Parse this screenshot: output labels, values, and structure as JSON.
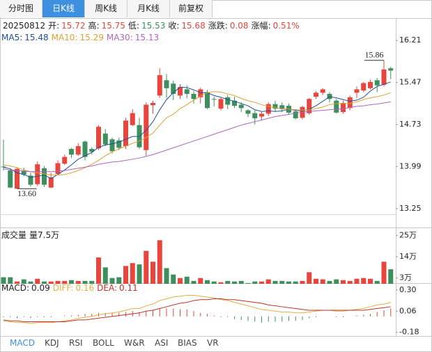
{
  "tabs": {
    "items": [
      "分时图",
      "日K线",
      "周K线",
      "月K线",
      "前复权"
    ],
    "active": 1
  },
  "info": {
    "date": "20250812",
    "fields": [
      {
        "label": "开",
        "value": "15.72",
        "color": "#e8453c"
      },
      {
        "label": "高",
        "value": "15.75",
        "color": "#e8453c"
      },
      {
        "label": "低",
        "value": "15.53",
        "color": "#3d8f5d"
      },
      {
        "label": "收",
        "value": "15.68",
        "color": "#e8453c"
      },
      {
        "label": "涨跌",
        "value": "0.08",
        "color": "#e8453c"
      },
      {
        "label": "涨幅",
        "value": "0.51%",
        "color": "#e8453c"
      }
    ]
  },
  "chart_data": [
    {
      "type": "candlestick",
      "up_color": "#e8453c",
      "down_color": "#3d8f5d",
      "open": [
        13.99,
        13.92,
        13.6,
        13.92,
        13.83,
        13.68,
        13.96,
        13.62,
        13.86,
        14.04,
        14.3,
        14.2,
        14.43,
        14.3,
        14.31,
        14.57,
        14.47,
        14.45,
        14.35,
        14.72,
        14.72,
        14.28,
        15.07,
        15.24,
        15.51,
        15.45,
        15.24,
        15.35,
        15.27,
        15.21,
        15.3,
        15.18,
        15.01,
        15.21,
        15.15,
        15.08,
        14.98,
        14.93,
        14.87,
        14.92,
        15.09,
        15.07,
        15.06,
        14.96,
        14.85,
        14.93,
        15.22,
        15.29,
        15.27,
        15.15,
        14.95,
        15.02,
        15.29,
        15.33,
        15.37,
        15.51,
        15.43,
        15.72
      ],
      "high": [
        14.46,
        13.94,
        13.98,
        13.97,
        13.88,
        14.08,
        14.0,
        13.88,
        14.1,
        14.2,
        14.32,
        14.4,
        14.45,
        14.33,
        14.72,
        14.65,
        14.5,
        14.5,
        14.85,
        15.0,
        14.85,
        15.12,
        15.15,
        15.72,
        15.62,
        15.5,
        15.44,
        15.42,
        15.32,
        15.38,
        15.34,
        15.22,
        15.2,
        15.25,
        15.22,
        15.12,
        15.0,
        14.98,
        14.95,
        15.12,
        15.15,
        15.12,
        15.1,
        15.0,
        15.06,
        15.2,
        15.32,
        15.37,
        15.3,
        15.18,
        15.15,
        15.24,
        15.4,
        15.48,
        15.52,
        15.55,
        15.86,
        15.75
      ],
      "low": [
        13.92,
        13.61,
        13.6,
        13.82,
        13.64,
        13.65,
        13.63,
        13.61,
        13.84,
        14.02,
        14.14,
        14.18,
        14.1,
        14.2,
        14.28,
        14.35,
        14.22,
        14.28,
        14.3,
        14.7,
        14.3,
        14.18,
        14.92,
        15.2,
        15.2,
        15.16,
        15.18,
        15.19,
        15.1,
        15.1,
        15.0,
        15.05,
        14.98,
        15.0,
        15.02,
        14.95,
        14.86,
        14.73,
        14.8,
        14.88,
        14.96,
        14.95,
        14.9,
        14.82,
        14.82,
        14.9,
        15.18,
        15.25,
        15.12,
        14.92,
        14.92,
        14.98,
        15.2,
        15.3,
        15.35,
        15.3,
        15.4,
        15.53
      ],
      "close": [
        13.98,
        13.62,
        13.95,
        13.85,
        13.67,
        14.03,
        13.67,
        13.8,
        14.05,
        14.16,
        14.2,
        14.35,
        14.16,
        14.25,
        14.69,
        14.38,
        14.26,
        14.32,
        14.8,
        14.93,
        14.33,
        15.08,
        15.11,
        15.6,
        15.37,
        15.27,
        15.39,
        15.27,
        15.18,
        15.35,
        15.02,
        15.17,
        15.18,
        15.08,
        15.06,
        15.02,
        14.92,
        14.84,
        14.92,
        15.09,
        15.01,
        15.0,
        14.94,
        14.84,
        15.04,
        15.18,
        15.29,
        15.35,
        15.18,
        14.94,
        15.11,
        15.21,
        15.35,
        15.46,
        15.48,
        15.42,
        15.7,
        15.68
      ],
      "series": [
        {
          "name": "MA5",
          "color": "#1f4f99",
          "current": 15.48,
          "values": [
            13.98,
            13.95,
            13.88,
            13.85,
            13.8,
            13.82,
            13.84,
            13.78,
            13.85,
            13.93,
            14.02,
            14.12,
            14.18,
            14.24,
            14.33,
            14.37,
            14.39,
            14.42,
            14.47,
            14.52,
            14.52,
            14.63,
            14.78,
            14.99,
            15.17,
            15.29,
            15.39,
            15.38,
            15.34,
            15.29,
            15.29,
            15.24,
            15.21,
            15.17,
            15.14,
            15.1,
            15.06,
            14.99,
            14.96,
            14.97,
            14.96,
            14.97,
            15.0,
            14.98,
            14.97,
            15.0,
            15.06,
            15.14,
            15.22,
            15.2,
            15.17,
            15.14,
            15.16,
            15.21,
            15.32,
            15.4,
            15.44,
            15.48
          ]
        },
        {
          "name": "MA10",
          "color": "#e0a030",
          "current": 15.29,
          "values": [
            14.02,
            14.0,
            13.97,
            13.93,
            13.9,
            13.88,
            13.86,
            13.84,
            13.84,
            13.85,
            13.88,
            13.92,
            13.97,
            14.03,
            14.1,
            14.18,
            14.25,
            14.3,
            14.35,
            14.4,
            14.44,
            14.5,
            14.58,
            14.72,
            14.85,
            14.91,
            15.01,
            15.08,
            15.16,
            15.23,
            15.29,
            15.31,
            15.3,
            15.27,
            15.24,
            15.19,
            15.15,
            15.12,
            15.08,
            15.05,
            15.03,
            15.01,
            15.0,
            14.99,
            14.98,
            14.99,
            15.01,
            15.04,
            15.08,
            15.1,
            15.1,
            15.1,
            15.13,
            15.17,
            15.2,
            15.22,
            15.25,
            15.29
          ]
        },
        {
          "name": "MA30",
          "color": "#b064c0",
          "current": 15.13,
          "values": [
            13.95,
            13.93,
            13.92,
            13.91,
            13.9,
            13.9,
            13.9,
            13.9,
            13.91,
            13.92,
            13.94,
            13.96,
            13.98,
            14.0,
            14.03,
            14.05,
            14.07,
            14.08,
            14.1,
            14.12,
            14.14,
            14.17,
            14.2,
            14.24,
            14.28,
            14.32,
            14.36,
            14.4,
            14.44,
            14.48,
            14.52,
            14.56,
            14.6,
            14.64,
            14.68,
            14.72,
            14.75,
            14.78,
            14.81,
            14.84,
            14.87,
            14.89,
            14.91,
            14.93,
            14.95,
            14.96,
            14.97,
            14.98,
            14.99,
            15.0,
            15.01,
            15.03,
            15.05,
            15.06,
            15.08,
            15.09,
            15.11,
            15.13
          ]
        }
      ],
      "ylim": [
        13.15,
        16.58
      ],
      "yticks": [
        16.21,
        15.47,
        14.73,
        13.99,
        13.25
      ],
      "annotations": [
        {
          "index": 56,
          "value": 15.86,
          "label": "15.86"
        },
        {
          "index": 2,
          "value": 13.6,
          "label": "13.60"
        }
      ]
    },
    {
      "type": "bar",
      "title": "成交量",
      "subtitle": "量7.5万",
      "up_color": "#e8453c",
      "down_color": "#3d8f5d",
      "values": [
        3.4,
        3.4,
        1.2,
        2.3,
        1.2,
        2.6,
        1.2,
        1.2,
        1.5,
        1.5,
        1.9,
        1.5,
        1.5,
        1.5,
        13.6,
        8.5,
        3,
        3.4,
        9.2,
        10.7,
        10,
        17,
        11.4,
        22.5,
        8.1,
        4.8,
        3,
        3.7,
        1.5,
        3,
        1.9,
        1.2,
        0.8,
        1.5,
        1.2,
        1.5,
        0.4,
        1.2,
        1.2,
        2.3,
        1.5,
        1.5,
        1.2,
        1.2,
        1.5,
        6,
        2.6,
        2.3,
        1.5,
        2.3,
        1.9,
        1.5,
        2.6,
        3,
        2.6,
        1.5,
        11.4,
        7.5
      ],
      "ylim": [
        0,
        28.7
      ],
      "yticks": [
        {
          "value": 25,
          "label": "25万"
        },
        {
          "value": 14,
          "label": "14万"
        },
        {
          "value": 3,
          "label": "3万"
        }
      ]
    },
    {
      "type": "macd",
      "name": "MACD",
      "current": 0.09,
      "color": "#222222",
      "up_color": "#e8453c",
      "down_color": "#3d8f5d",
      "values": [
        -0.01,
        -0.01,
        -0.02,
        -0.01,
        -0.02,
        -0.01,
        -0.01,
        -0.01,
        0.0,
        0.01,
        0.01,
        0.02,
        0.03,
        0.03,
        0.04,
        0.04,
        0.04,
        0.04,
        0.05,
        0.06,
        0.05,
        0.06,
        0.07,
        0.09,
        0.09,
        0.09,
        0.08,
        0.08,
        0.06,
        0.04,
        0.03,
        0.01,
        -0.01,
        -0.01,
        -0.03,
        -0.04,
        -0.05,
        -0.06,
        -0.07,
        -0.06,
        -0.06,
        -0.06,
        -0.05,
        -0.05,
        -0.04,
        -0.02,
        -0.01,
        0.0,
        0.0,
        -0.01,
        -0.01,
        0.0,
        0.01,
        0.02,
        0.03,
        0.05,
        0.07,
        0.09
      ],
      "series": [
        {
          "name": "DIFF",
          "color": "#e0b040",
          "current": 0.16,
          "values": [
            -0.05,
            -0.06,
            -0.07,
            -0.07,
            -0.08,
            -0.07,
            -0.07,
            -0.07,
            -0.06,
            -0.05,
            -0.04,
            -0.02,
            -0.01,
            0.0,
            0.02,
            0.03,
            0.04,
            0.05,
            0.07,
            0.09,
            0.09,
            0.12,
            0.14,
            0.18,
            0.2,
            0.22,
            0.23,
            0.24,
            0.24,
            0.23,
            0.22,
            0.21,
            0.19,
            0.18,
            0.16,
            0.14,
            0.12,
            0.1,
            0.08,
            0.07,
            0.06,
            0.05,
            0.05,
            0.04,
            0.04,
            0.05,
            0.06,
            0.07,
            0.07,
            0.06,
            0.06,
            0.07,
            0.08,
            0.09,
            0.11,
            0.13,
            0.14,
            0.16
          ]
        },
        {
          "name": "DEA",
          "color": "#c0302a",
          "current": 0.11,
          "values": [
            -0.04,
            -0.05,
            -0.05,
            -0.06,
            -0.06,
            -0.06,
            -0.06,
            -0.06,
            -0.06,
            -0.06,
            -0.05,
            -0.04,
            -0.04,
            -0.03,
            -0.02,
            -0.01,
            0.0,
            0.01,
            0.02,
            0.03,
            0.04,
            0.06,
            0.07,
            0.09,
            0.11,
            0.13,
            0.15,
            0.16,
            0.18,
            0.19,
            0.19,
            0.2,
            0.2,
            0.19,
            0.19,
            0.18,
            0.17,
            0.16,
            0.15,
            0.13,
            0.12,
            0.11,
            0.1,
            0.09,
            0.08,
            0.07,
            0.07,
            0.07,
            0.07,
            0.07,
            0.07,
            0.07,
            0.07,
            0.07,
            0.08,
            0.09,
            0.1,
            0.11
          ]
        }
      ],
      "ylim": [
        -0.23,
        0.37
      ],
      "yticks": [
        {
          "value": 0.3,
          "label": "0.30"
        },
        0.06,
        -0.18
      ]
    }
  ],
  "indicator_tabs": {
    "items": [
      "MACD",
      "KDJ",
      "RSI",
      "BOLL",
      "W&R",
      "ASI",
      "BIAS",
      "VR"
    ],
    "active": 0
  }
}
